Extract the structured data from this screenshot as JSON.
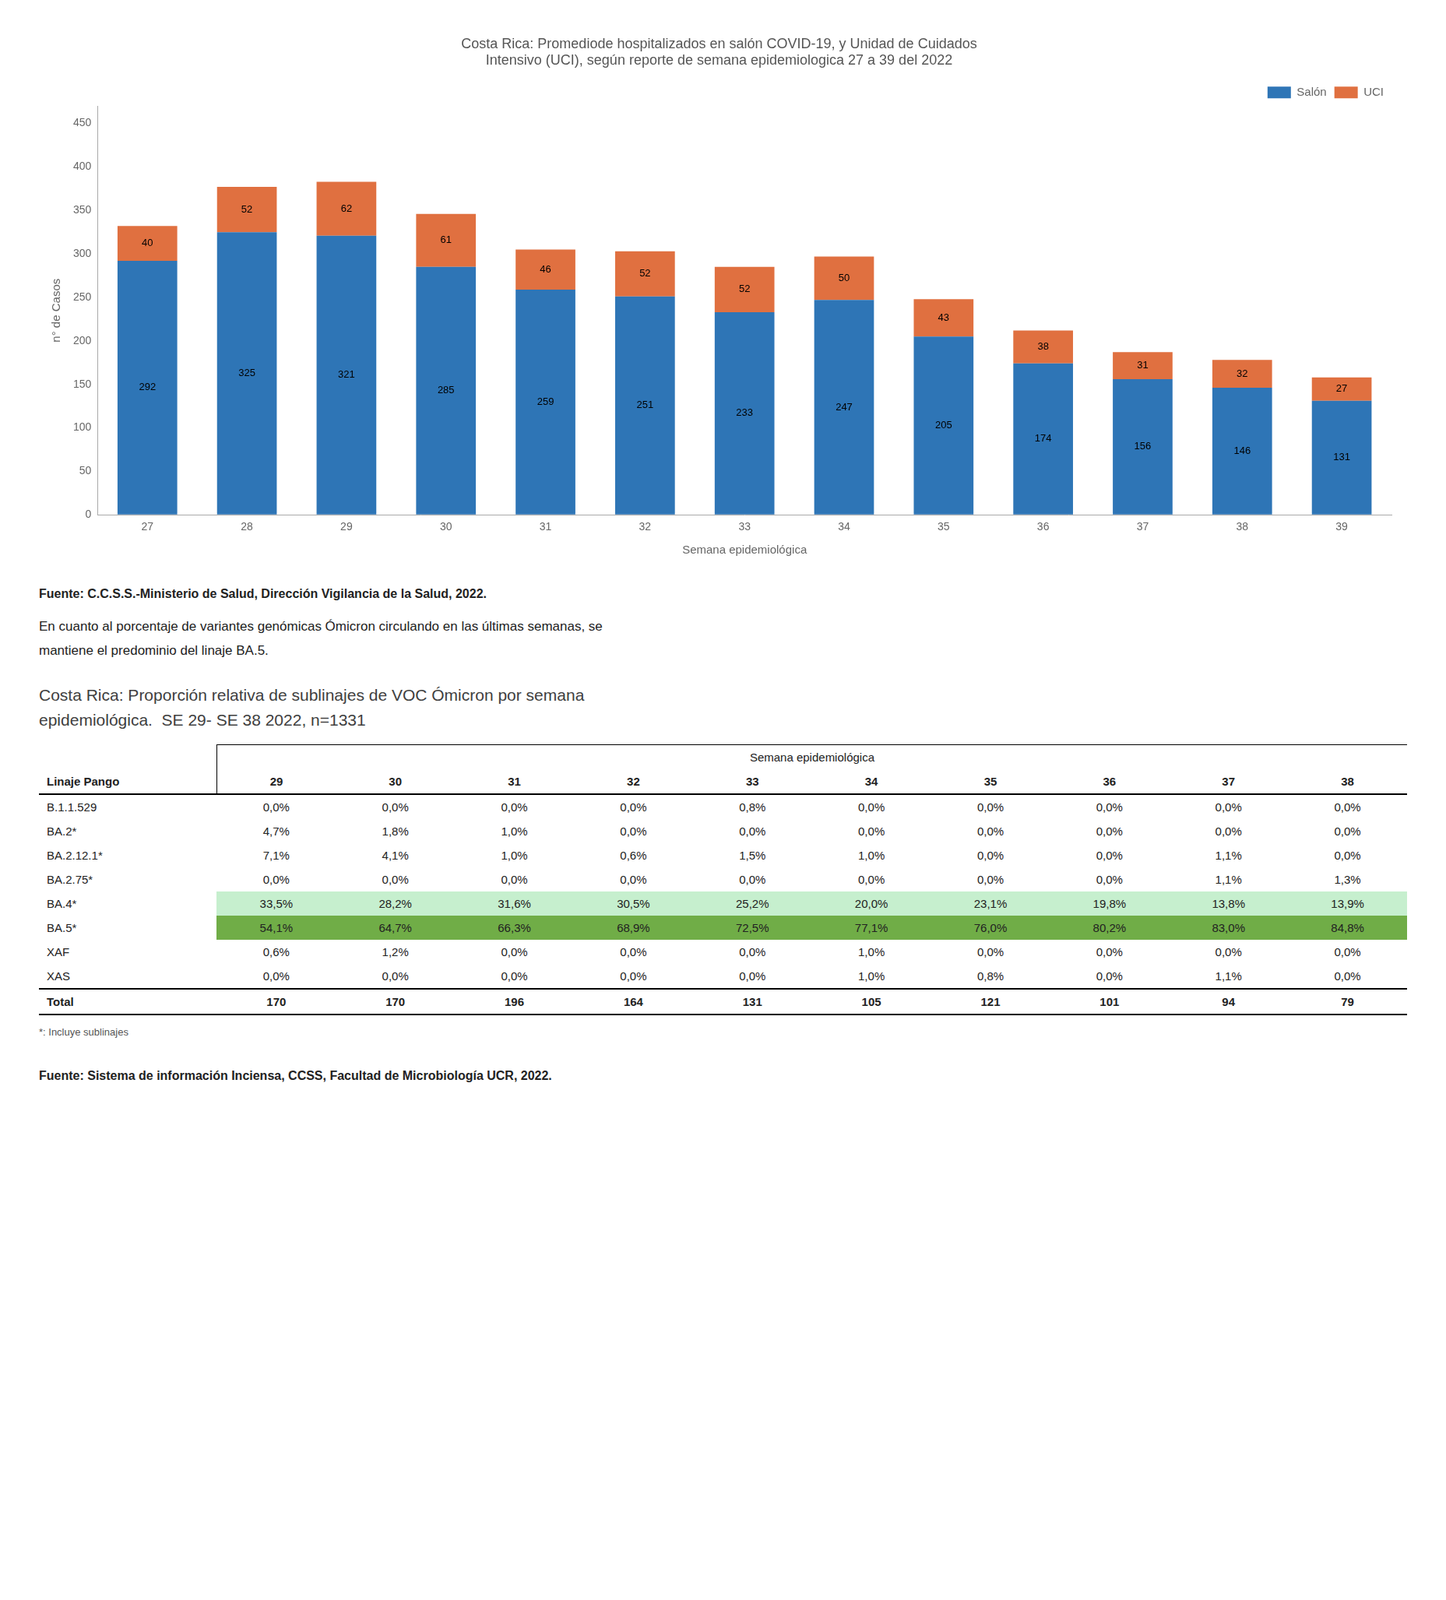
{
  "chart_data": {
    "type": "bar",
    "title": "Costa Rica: Promediode hospitalizados en salón COVID-19, y Unidad de Cuidados\nIntensivo (UCI), según reporte de semana epidemiologica 27 a 39 del 2022",
    "categories": [
      "27",
      "28",
      "29",
      "30",
      "31",
      "32",
      "33",
      "34",
      "35",
      "36",
      "37",
      "38",
      "39"
    ],
    "series": [
      {
        "name": "Salón",
        "color": "#2e75b6",
        "values": [
          292,
          325,
          321,
          285,
          259,
          251,
          233,
          247,
          205,
          174,
          156,
          146,
          131
        ]
      },
      {
        "name": "UCI",
        "color": "#e07040",
        "values": [
          40,
          52,
          62,
          61,
          46,
          52,
          52,
          50,
          43,
          38,
          31,
          32,
          27
        ]
      }
    ],
    "x_label": "Semana epidemiológica",
    "y_label": "n° de Casos",
    "ylim": [
      0,
      470
    ],
    "yticks": [
      0,
      50,
      100,
      150,
      200,
      250,
      300,
      350,
      400,
      450
    ],
    "stacked": true,
    "data_labels": true,
    "grid": false,
    "legend": "upper right",
    "annotations": [
      "Fuente: C.C.S.S.-Ministerio de Salud, Dirección Vigilancia de la Salud, 2022.",
      "En cuanto al porcentaje de variantes genómicas Ómicron circulando en las últimas semanas, se\nmantiene el predominio del linaje BA.5."
    ]
  },
  "table": {
    "title": "Costa Rica: Proporción relativa de sublinajes de VOC Ómicron por semana\nepidemiológica.  SE 29- SE 38 2022, n=1331",
    "header": "Semana epidemiológica",
    "label_header": "Linaje Pango",
    "columns": [
      "29",
      "30",
      "31",
      "32",
      "33",
      "34",
      "35",
      "36",
      "37",
      "38"
    ],
    "rows": [
      {
        "label": "B.1.1.529",
        "values": [
          "0,0%",
          "0,0%",
          "0,0%",
          "0,0%",
          "0,8%",
          "0,0%",
          "0,0%",
          "0,0%",
          "0,0%",
          "0,0%"
        ]
      },
      {
        "label": "BA.2*",
        "values": [
          "4,7%",
          "1,8%",
          "1,0%",
          "0,0%",
          "0,0%",
          "0,0%",
          "0,0%",
          "0,0%",
          "0,0%",
          "0,0%"
        ]
      },
      {
        "label": "BA.2.12.1*",
        "values": [
          "7,1%",
          "4,1%",
          "1,0%",
          "0,6%",
          "1,5%",
          "1,0%",
          "0,0%",
          "0,0%",
          "1,1%",
          "0,0%"
        ]
      },
      {
        "label": "BA.2.75*",
        "values": [
          "0,0%",
          "0,0%",
          "0,0%",
          "0,0%",
          "0,0%",
          "0,0%",
          "0,0%",
          "0,0%",
          "1,1%",
          "1,3%"
        ]
      },
      {
        "label": "BA.4*",
        "values": [
          "33,5%",
          "28,2%",
          "31,6%",
          "30,5%",
          "25,2%",
          "20,0%",
          "23,1%",
          "19,8%",
          "13,8%",
          "13,9%"
        ],
        "color": "#c6efce"
      },
      {
        "label": "BA.5*",
        "values": [
          "54,1%",
          "64,7%",
          "66,3%",
          "68,9%",
          "72,5%",
          "77,1%",
          "76,0%",
          "80,2%",
          "83,0%",
          "84,8%"
        ],
        "color": "#70ad47"
      },
      {
        "label": "XAF",
        "values": [
          "0,6%",
          "1,2%",
          "0,0%",
          "0,0%",
          "0,0%",
          "1,0%",
          "0,0%",
          "0,0%",
          "0,0%",
          "0,0%"
        ]
      },
      {
        "label": "XAS",
        "values": [
          "0,0%",
          "0,0%",
          "0,0%",
          "0,0%",
          "0,0%",
          "1,0%",
          "0,8%",
          "0,0%",
          "1,1%",
          "0,0%"
        ]
      }
    ],
    "total": {
      "label": "Total",
      "values": [
        "170",
        "170",
        "196",
        "164",
        "131",
        "105",
        "121",
        "101",
        "94",
        "79"
      ]
    },
    "footnote": "*: Incluye sublinajes",
    "annotations": [
      "Fuente: Sistema de información Inciensa, CCSS, Facultad de Microbiología UCR, 2022."
    ]
  }
}
